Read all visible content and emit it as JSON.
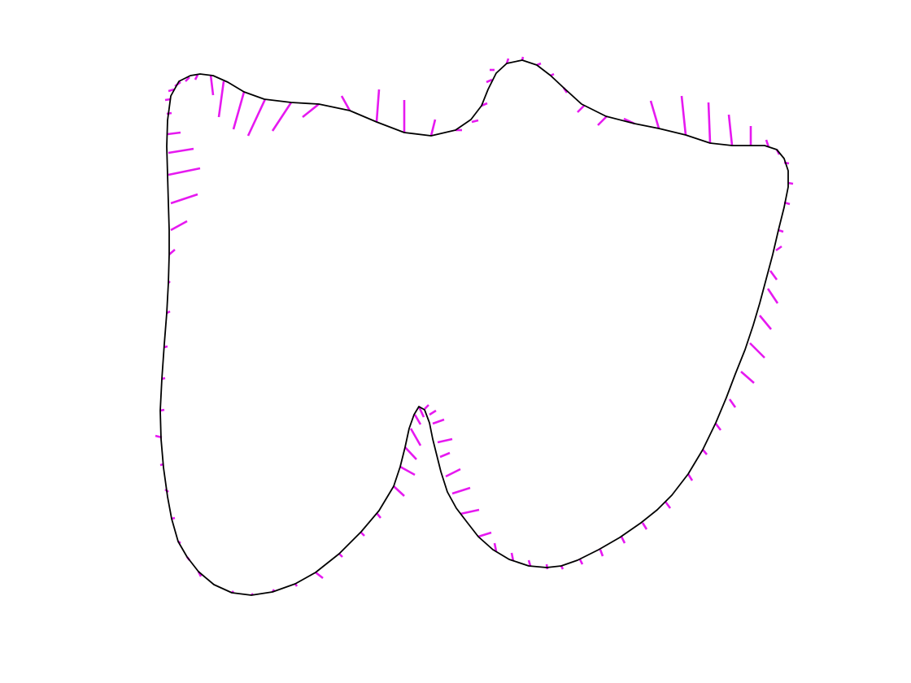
{
  "figure": {
    "outline_color": "#000000",
    "tick_color": "#e619f0"
  }
}
